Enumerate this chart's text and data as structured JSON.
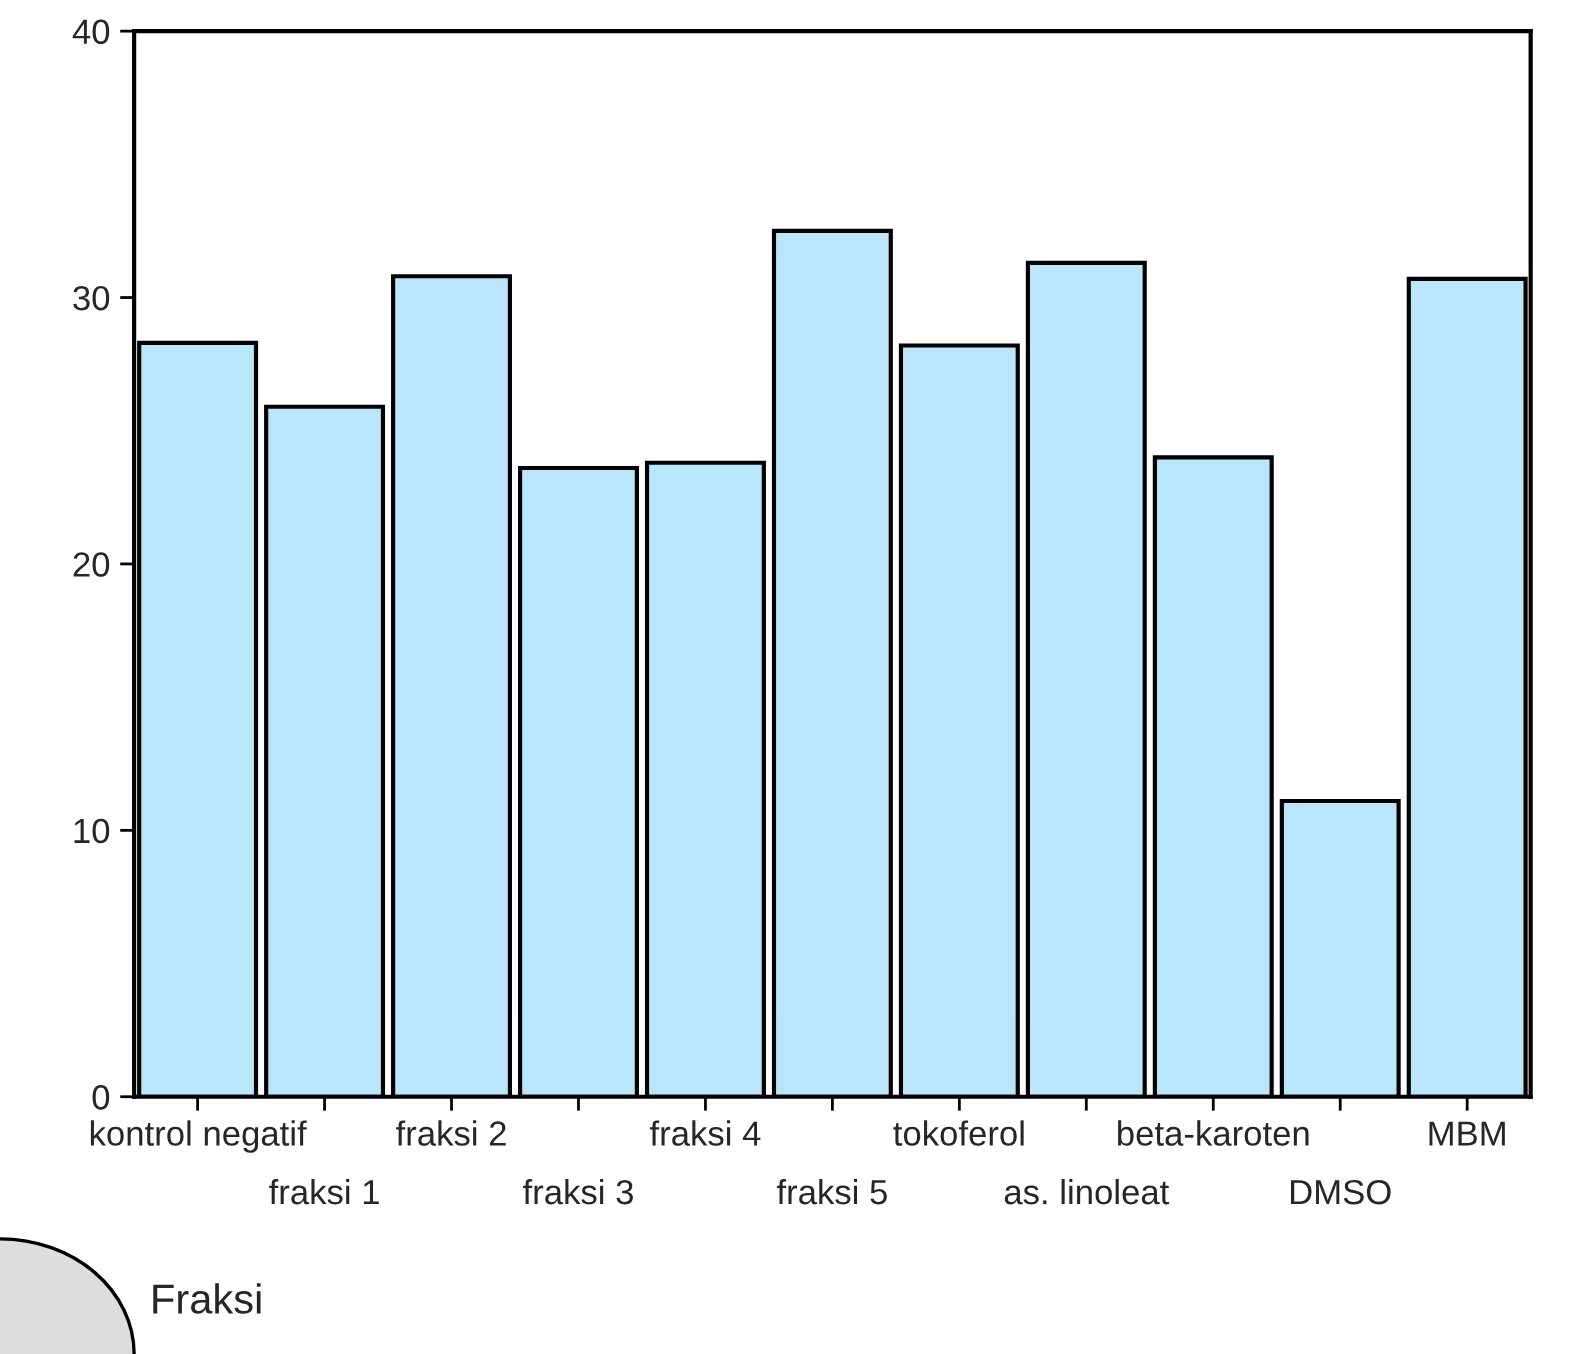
{
  "chart_data": {
    "type": "bar",
    "xlabel": "Fraksi",
    "categories": [
      "kontrol negatif",
      "fraksi 1",
      "fraksi 2",
      "fraksi 3",
      "fraksi 4",
      "fraksi 5",
      "tokoferol",
      "as. linoleat",
      "beta-karoten",
      "DMSO",
      "MBM"
    ],
    "values": [
      28.3,
      25.9,
      30.8,
      23.6,
      23.8,
      32.5,
      28.2,
      31.3,
      24.0,
      11.1,
      30.7
    ],
    "color": "#b9e6fb",
    "ylim": [
      0,
      40
    ],
    "yticks": [
      0,
      10,
      20,
      30,
      40
    ],
    "grid": false,
    "legend": false
  }
}
